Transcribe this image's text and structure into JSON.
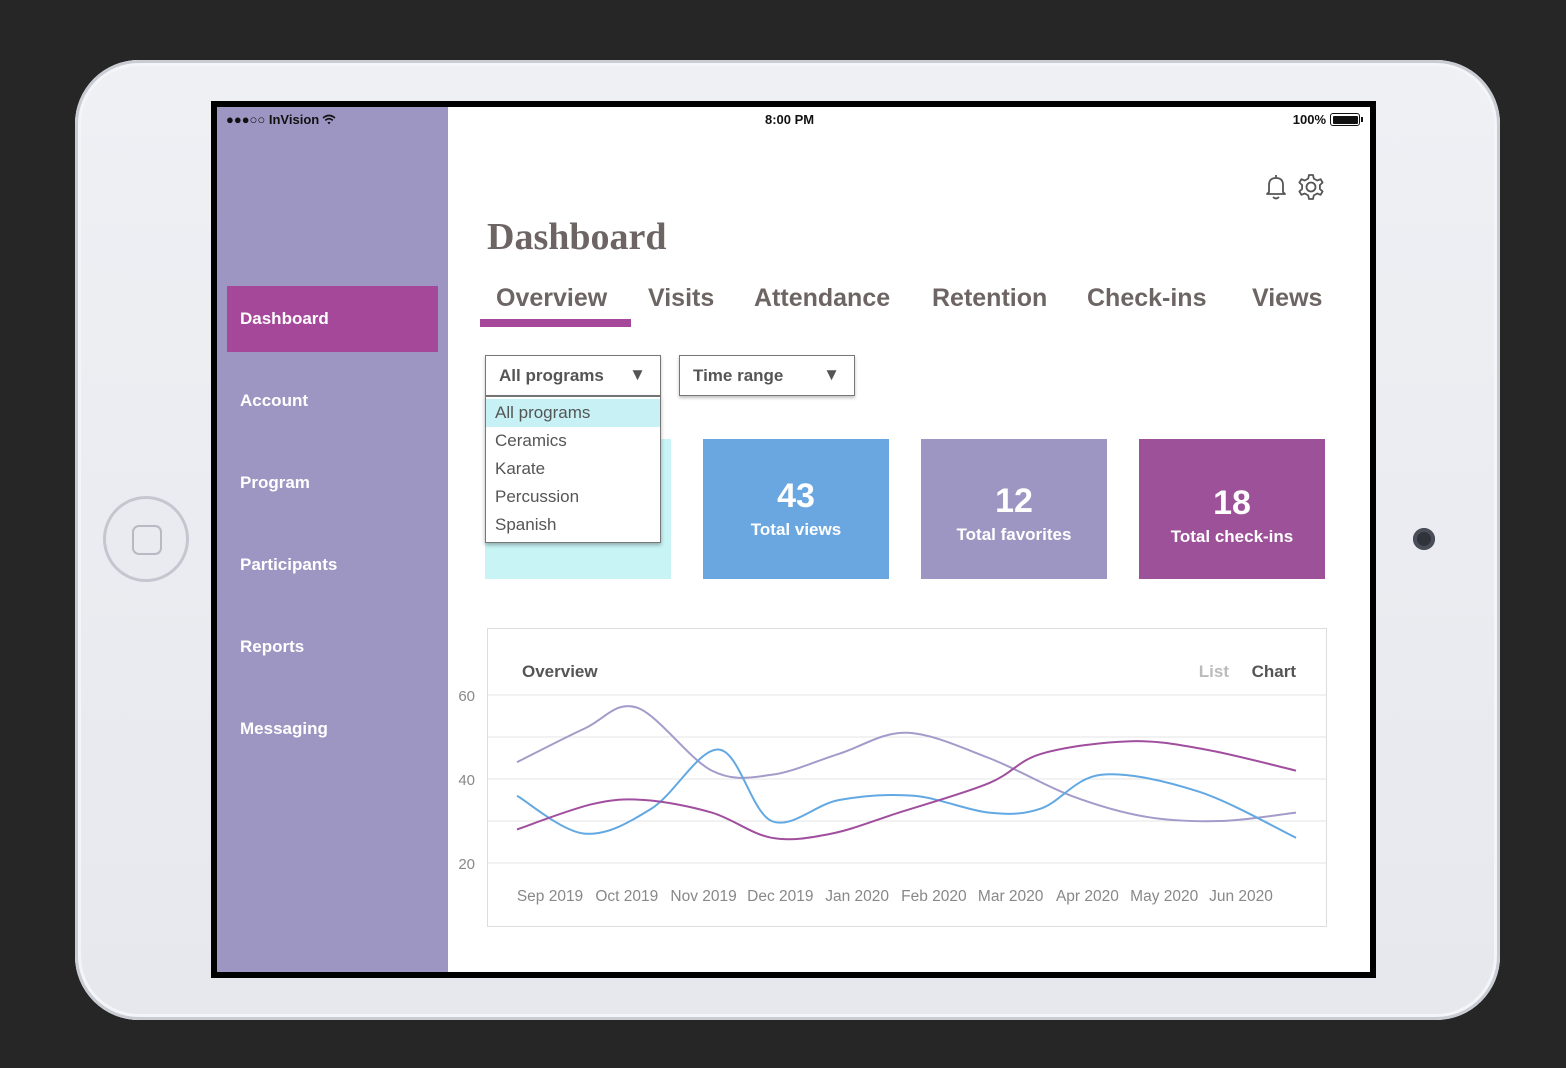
{
  "status_bar": {
    "carrier": "●●●○○ InVision",
    "time": "8:00 PM",
    "battery": "100%"
  },
  "sidebar": {
    "items": [
      {
        "label": "Dashboard",
        "active": true
      },
      {
        "label": "Account"
      },
      {
        "label": "Program"
      },
      {
        "label": "Participants"
      },
      {
        "label": "Reports"
      },
      {
        "label": "Messaging"
      }
    ]
  },
  "header": {
    "title": "Dashboard",
    "icons": [
      "bell-icon",
      "gear-icon"
    ]
  },
  "tabs": [
    {
      "label": "Overview",
      "active": true
    },
    {
      "label": "Visits"
    },
    {
      "label": "Attendance"
    },
    {
      "label": "Retention"
    },
    {
      "label": "Check-ins"
    },
    {
      "label": "Views"
    }
  ],
  "filters": {
    "program": {
      "value": "All programs",
      "options": [
        "All programs",
        "Ceramics",
        "Karate",
        "Percussion",
        "Spanish"
      ],
      "open": true
    },
    "time_range": {
      "value": "Time range"
    }
  },
  "stats": [
    {
      "value": "",
      "label": "",
      "color": "#c8f4f5"
    },
    {
      "value": "43",
      "label": "Total views",
      "color": "#6aa6e0"
    },
    {
      "value": "12",
      "label": "Total favorites",
      "color": "#9d96c2"
    },
    {
      "value": "18",
      "label": "Total check-ins",
      "color": "#9c5198"
    }
  ],
  "chart_panel": {
    "title": "Overview",
    "list_label": "List",
    "chart_label": "Chart"
  },
  "colors": {
    "sidebar": "#9d96c2",
    "accent": "#a6489a",
    "text": "#6d6563"
  },
  "chart_data": {
    "type": "line",
    "categories": [
      "Sep 2019",
      "Oct 2019",
      "Nov 2019",
      "Dec 2019",
      "Jan 2020",
      "Feb 2020",
      "Mar 2020",
      "Apr 2020",
      "May 2020",
      "Jun 2020"
    ],
    "x_range": [
      0,
      10.4
    ],
    "ylim": [
      20,
      60
    ],
    "yticks": [
      20,
      40,
      60
    ],
    "grid": true,
    "series": [
      {
        "color": "#a39bc9",
        "values": [
          44,
          52,
          57,
          42,
          41,
          46,
          51,
          45,
          36,
          31,
          30,
          32
        ],
        "x": [
          0,
          0.9,
          1.6,
          2.6,
          3.4,
          4.3,
          5.2,
          6.3,
          7.4,
          8.4,
          9.4,
          10.4
        ]
      },
      {
        "color": "#62a8e3",
        "values": [
          36,
          27,
          33,
          47,
          30,
          35,
          36,
          32,
          33,
          41,
          37,
          26
        ],
        "x": [
          0,
          0.9,
          1.8,
          2.7,
          3.4,
          4.3,
          5.3,
          6.3,
          7.0,
          7.8,
          9.1,
          10.4
        ]
      },
      {
        "color": "#a04e9e",
        "values": [
          28,
          34,
          35,
          32,
          26,
          27,
          32,
          39,
          46,
          49,
          47,
          42
        ],
        "x": [
          0,
          1.0,
          1.7,
          2.6,
          3.4,
          4.2,
          5.1,
          6.3,
          7.0,
          8.2,
          9.2,
          10.4
        ]
      }
    ]
  }
}
